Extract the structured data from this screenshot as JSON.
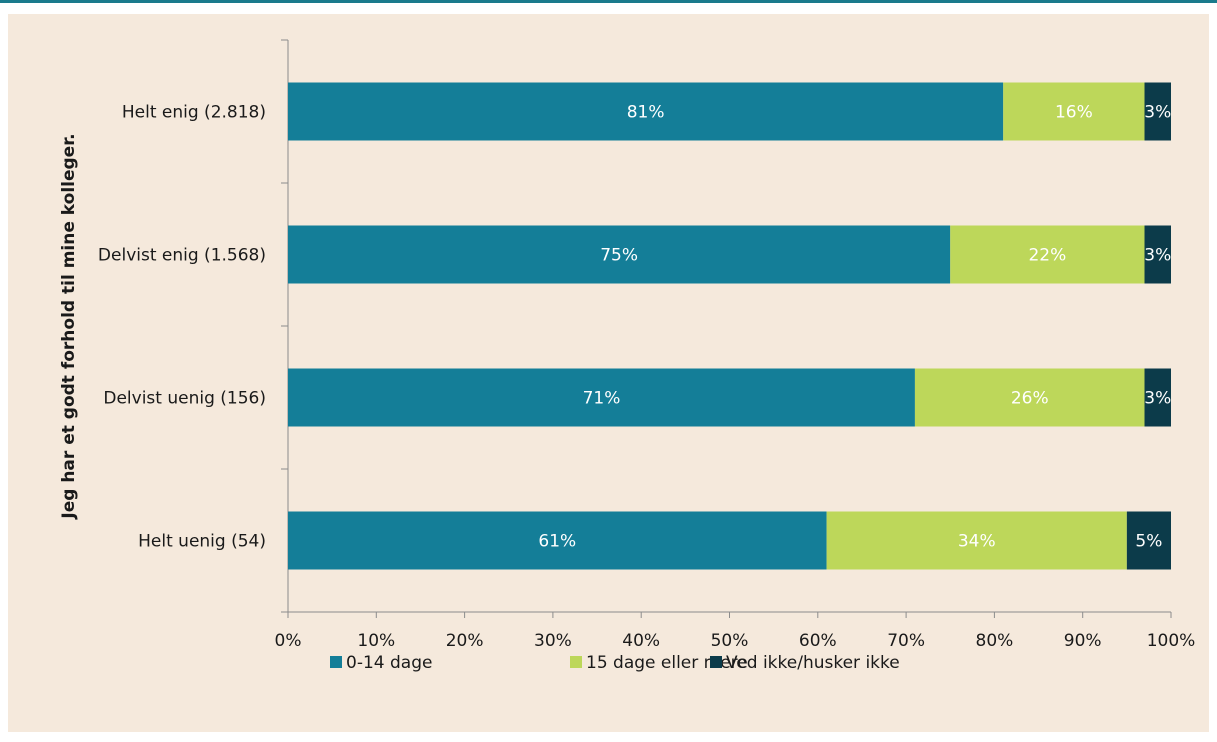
{
  "chart_data": {
    "type": "bar",
    "orientation": "horizontal",
    "stacked": true,
    "title": "",
    "xlabel": "",
    "ylabel": "Jeg har et godt forhold til mine kolleger.",
    "categories": [
      "Helt enig (2.818)",
      "Delvist enig (1.568)",
      "Delvist uenig (156)",
      "Helt uenig (54)"
    ],
    "series": [
      {
        "name": "0-14 dage",
        "color": "#147e98",
        "values": [
          81,
          75,
          71,
          61
        ],
        "labels": [
          "81%",
          "75%",
          "71%",
          "61%"
        ]
      },
      {
        "name": "15 dage eller mere",
        "color": "#bdd75a",
        "values": [
          16,
          22,
          26,
          34
        ],
        "labels": [
          "16%",
          "22%",
          "26%",
          "34%"
        ]
      },
      {
        "name": "Ved ikke/husker ikke",
        "color": "#0c3b4a",
        "values": [
          3,
          3,
          3,
          5
        ],
        "labels": [
          "3%",
          "3%",
          "3%",
          "5%"
        ]
      }
    ],
    "xlim": [
      0,
      100
    ],
    "xticks": [
      "0%",
      "10%",
      "20%",
      "30%",
      "40%",
      "50%",
      "60%",
      "70%",
      "80%",
      "90%",
      "100%"
    ],
    "grid": false,
    "legend_position": "bottom"
  }
}
